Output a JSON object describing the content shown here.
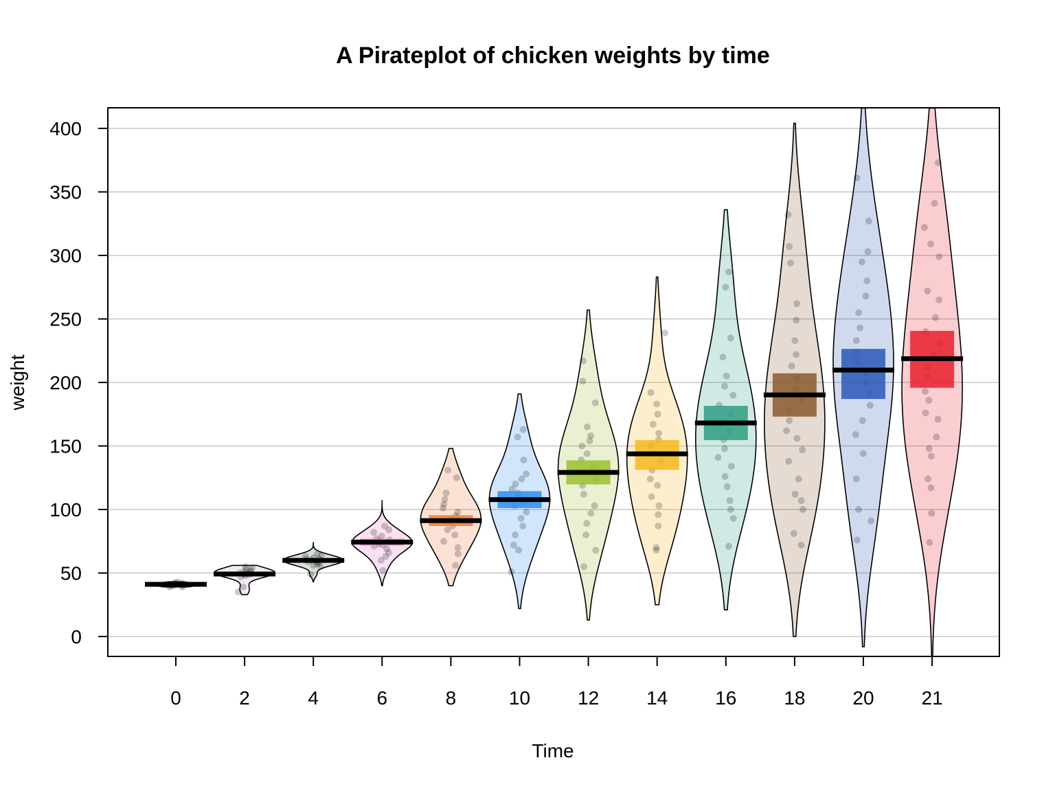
{
  "chart_data": {
    "type": "pirateplot",
    "title": "A Pirateplot of chicken weights by time",
    "xlabel": "Time",
    "ylabel": "weight",
    "ylim": [
      -15,
      416
    ],
    "yticks": [
      0,
      50,
      100,
      150,
      200,
      250,
      300,
      350,
      400
    ],
    "grid": true,
    "groups": [
      {
        "label": "0",
        "mean": 41.1,
        "ci": [
          40.6,
          41.6
        ],
        "min": 39,
        "max": 43,
        "color": "#000000",
        "points": [
          39,
          40,
          41,
          41,
          42,
          41,
          40,
          42,
          43,
          41,
          39,
          41,
          42,
          40,
          41
        ]
      },
      {
        "label": "2",
        "mean": 49.2,
        "ci": [
          48.2,
          50.3
        ],
        "min": 33,
        "max": 56,
        "color": "#c2a5cf",
        "points": [
          35,
          39,
          47,
          48,
          49,
          49,
          50,
          51,
          51,
          52,
          53,
          54,
          55,
          49,
          50
        ]
      },
      {
        "label": "4",
        "mean": 59.9,
        "ci": [
          58.6,
          61.3
        ],
        "min": 43,
        "max": 74,
        "color": "#3b7d47",
        "points": [
          49,
          55,
          56,
          57,
          58,
          59,
          60,
          60,
          61,
          62,
          63,
          64,
          65,
          59,
          61
        ]
      },
      {
        "label": "6",
        "mean": 74.3,
        "ci": [
          71.6,
          77.0
        ],
        "min": 40,
        "max": 107,
        "color": "#e377c2",
        "points": [
          52,
          60,
          63,
          66,
          69,
          71,
          73,
          74,
          75,
          77,
          79,
          82,
          84,
          87,
          72,
          76
        ]
      },
      {
        "label": "8",
        "mean": 91.2,
        "ci": [
          87.0,
          95.5
        ],
        "min": 40,
        "max": 148,
        "color": "#f07a3a",
        "points": [
          56,
          65,
          70,
          75,
          80,
          84,
          87,
          90,
          92,
          95,
          98,
          101,
          104,
          108,
          113,
          125,
          131
        ]
      },
      {
        "label": "10",
        "mean": 107.8,
        "ci": [
          101.1,
          114.4
        ],
        "min": 22,
        "max": 191,
        "color": "#2e8ef0",
        "points": [
          51,
          68,
          72,
          80,
          87,
          93,
          98,
          103,
          106,
          110,
          113,
          116,
          120,
          124,
          128,
          139,
          157,
          163
        ]
      },
      {
        "label": "12",
        "mean": 129.2,
        "ci": [
          119.7,
          138.7
        ],
        "min": 13,
        "max": 257,
        "color": "#9ac030",
        "points": [
          55,
          68,
          80,
          89,
          97,
          103,
          112,
          119,
          124,
          129,
          133,
          139,
          144,
          150,
          154,
          158,
          165,
          184,
          201,
          217
        ]
      },
      {
        "label": "14",
        "mean": 143.8,
        "ci": [
          131.2,
          154.6
        ],
        "min": 25,
        "max": 283,
        "color": "#f5b71e",
        "points": [
          68,
          70,
          87,
          96,
          103,
          110,
          119,
          124,
          131,
          138,
          144,
          150,
          155,
          160,
          167,
          175,
          183,
          192,
          239
        ]
      },
      {
        "label": "16",
        "mean": 168.1,
        "ci": [
          154.6,
          181.6
        ],
        "min": 21,
        "max": 336,
        "color": "#2f9d84",
        "points": [
          71,
          93,
          100,
          107,
          118,
          126,
          134,
          141,
          148,
          155,
          162,
          168,
          175,
          182,
          190,
          197,
          205,
          220,
          235,
          275,
          287
        ]
      },
      {
        "label": "18",
        "mean": 190.2,
        "ci": [
          173.1,
          207.2
        ],
        "min": 0,
        "max": 404,
        "color": "#8a5a30",
        "points": [
          72,
          81,
          100,
          107,
          112,
          124,
          138,
          147,
          156,
          162,
          170,
          178,
          186,
          195,
          203,
          213,
          222,
          233,
          249,
          262,
          294,
          307,
          332
        ]
      },
      {
        "label": "20",
        "mean": 209.7,
        "ci": [
          187.0,
          226.4
        ],
        "min": -8,
        "max": 416,
        "color": "#2a58b8",
        "points": [
          76,
          91,
          100,
          124,
          144,
          159,
          170,
          182,
          191,
          200,
          208,
          216,
          224,
          233,
          243,
          255,
          268,
          280,
          295,
          303,
          327,
          361
        ]
      },
      {
        "label": "21",
        "mean": 218.7,
        "ci": [
          195.8,
          240.6
        ],
        "min": -15,
        "max": 416,
        "color": "#e8202e",
        "points": [
          74,
          97,
          117,
          124,
          142,
          148,
          157,
          171,
          176,
          186,
          193,
          205,
          212,
          222,
          231,
          240,
          251,
          265,
          272,
          299,
          309,
          322,
          341,
          373
        ]
      }
    ]
  }
}
